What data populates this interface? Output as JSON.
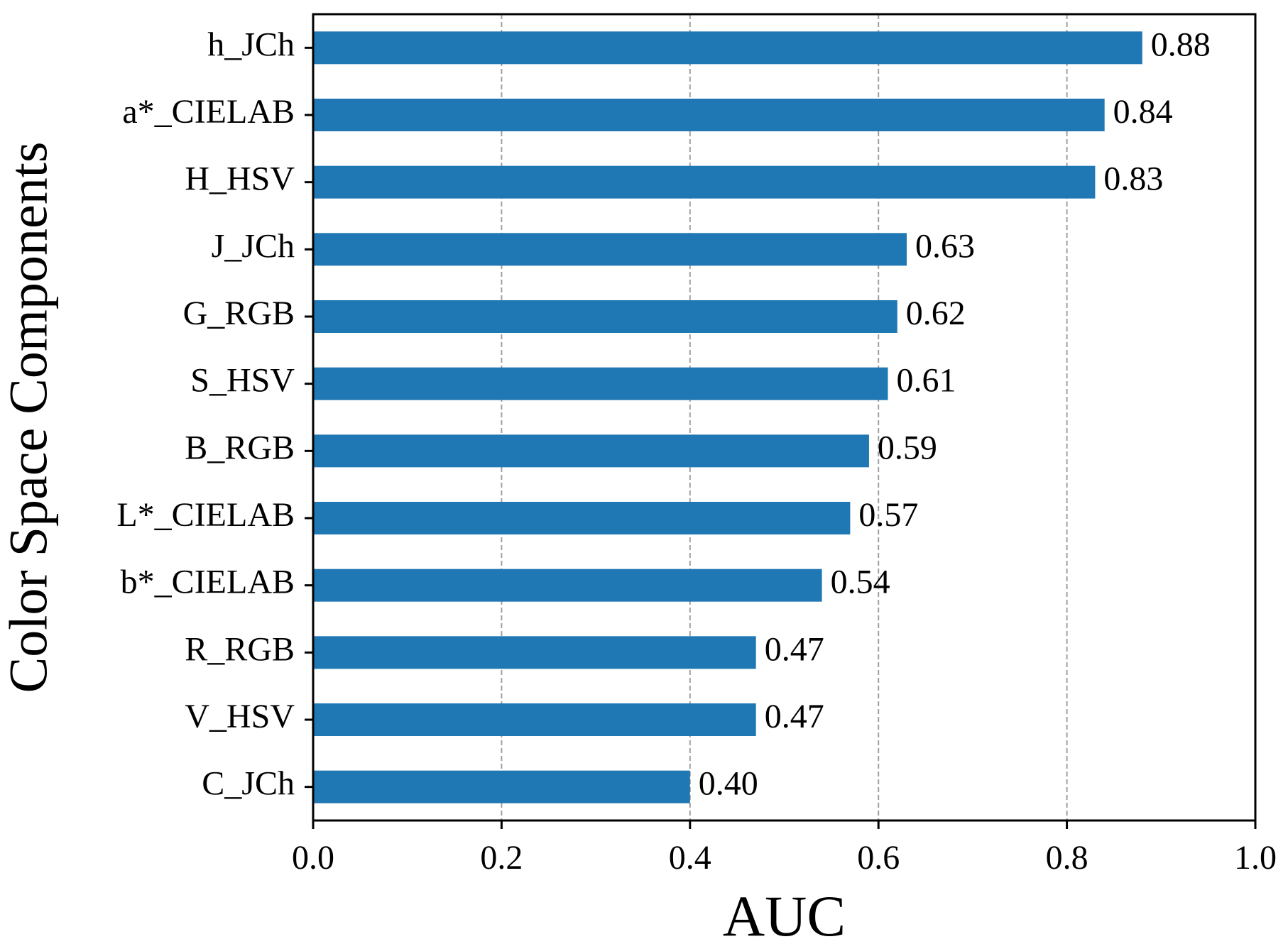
{
  "chart_data": {
    "type": "bar",
    "orientation": "horizontal",
    "title": "",
    "xlabel": "AUC",
    "ylabel": "Color Space Components",
    "xlim": [
      0.0,
      1.0
    ],
    "xticks": [
      "0.0",
      "0.2",
      "0.4",
      "0.6",
      "0.8",
      "1.0"
    ],
    "xtick_values": [
      0.0,
      0.2,
      0.4,
      0.6,
      0.8,
      1.0
    ],
    "grid": "x-dashed",
    "bar_color": "#1f77b4",
    "categories": [
      "h_JCh",
      "a*_CIELAB",
      "H_HSV",
      "J_JCh",
      "G_RGB",
      "S_HSV",
      "B_RGB",
      "L*_CIELAB",
      "b*_CIELAB",
      "R_RGB",
      "V_HSV",
      "C_JCh"
    ],
    "values": [
      0.88,
      0.84,
      0.83,
      0.63,
      0.62,
      0.61,
      0.59,
      0.57,
      0.54,
      0.47,
      0.47,
      0.4
    ],
    "value_labels": [
      "0.88",
      "0.84",
      "0.83",
      "0.63",
      "0.62",
      "0.61",
      "0.59",
      "0.57",
      "0.54",
      "0.47",
      "0.47",
      "0.40"
    ]
  }
}
